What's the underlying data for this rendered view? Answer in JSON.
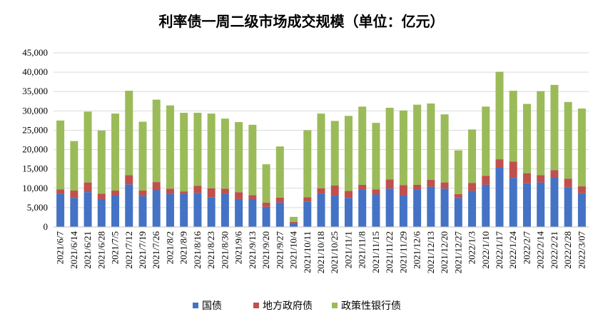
{
  "chart_data": {
    "type": "bar",
    "stacked": true,
    "title": "利率债一周二级市场成交规模（单位：亿元）",
    "ylim": [
      0,
      45000
    ],
    "yticks": [
      "0",
      "5,000",
      "10,000",
      "15,000",
      "20,000",
      "25,000",
      "30,000",
      "35,000",
      "40,000",
      "45,000"
    ],
    "grid": true,
    "legend_position": "bottom",
    "categories": [
      "2021/6/7",
      "2021/6/14",
      "2021/6/21",
      "2021/6/28",
      "2021/7/5",
      "2021/7/12",
      "2021/7/19",
      "2021/7/26",
      "2021/8/2",
      "2021/8/9",
      "2021/8/16",
      "2021/8/23",
      "2021/8/30",
      "2021/9/6",
      "2021/9/13",
      "2021/9/20",
      "2021/9/27",
      "2021/10/4",
      "2021/10/11",
      "2021/10/18",
      "2021/10/25",
      "2021/11/1",
      "2021/11/8",
      "2021/11/15",
      "2021/11/22",
      "2021/11/29",
      "2021/12/6",
      "2021/12/13",
      "2021/12/20",
      "2021/12/27",
      "2022/1/3",
      "2022/1/10",
      "2022/1/17",
      "2022/1/24",
      "2022/2/7",
      "2022/2/14",
      "2022/2/21",
      "2022/2/28",
      "2022/3/07"
    ],
    "series": [
      {
        "name": "国债",
        "color": "#4472C4",
        "values": [
          8500,
          7500,
          9000,
          7200,
          8200,
          11000,
          8000,
          9500,
          8500,
          8500,
          8800,
          7700,
          8500,
          7200,
          7200,
          5200,
          6300,
          1000,
          6500,
          8600,
          8100,
          7500,
          9600,
          8400,
          9900,
          8200,
          9700,
          10400,
          9900,
          7500,
          9300,
          10900,
          15300,
          12700,
          11300,
          11500,
          12900,
          10300,
          8700
        ]
      },
      {
        "name": "地方政府债",
        "color": "#C0504D",
        "values": [
          1200,
          1900,
          2500,
          1400,
          1200,
          2400,
          1400,
          2100,
          1400,
          700,
          1800,
          2300,
          1400,
          1800,
          1000,
          1100,
          1300,
          300,
          1200,
          1400,
          2600,
          1800,
          1300,
          1300,
          2400,
          2600,
          1200,
          1800,
          1600,
          1000,
          2100,
          2300,
          2200,
          4200,
          2600,
          1900,
          1800,
          2200,
          1800
        ]
      },
      {
        "name": "政策性银行债",
        "color": "#9BBB59",
        "values": [
          17800,
          12800,
          18300,
          16300,
          19900,
          21800,
          17800,
          21300,
          21500,
          20300,
          18900,
          19300,
          18100,
          18100,
          18200,
          9900,
          13200,
          1300,
          17300,
          19300,
          16700,
          19400,
          20200,
          17200,
          18500,
          19300,
          20700,
          19700,
          17600,
          11300,
          13800,
          17900,
          22600,
          18300,
          17900,
          21700,
          22000,
          19800,
          20100
        ]
      }
    ]
  }
}
